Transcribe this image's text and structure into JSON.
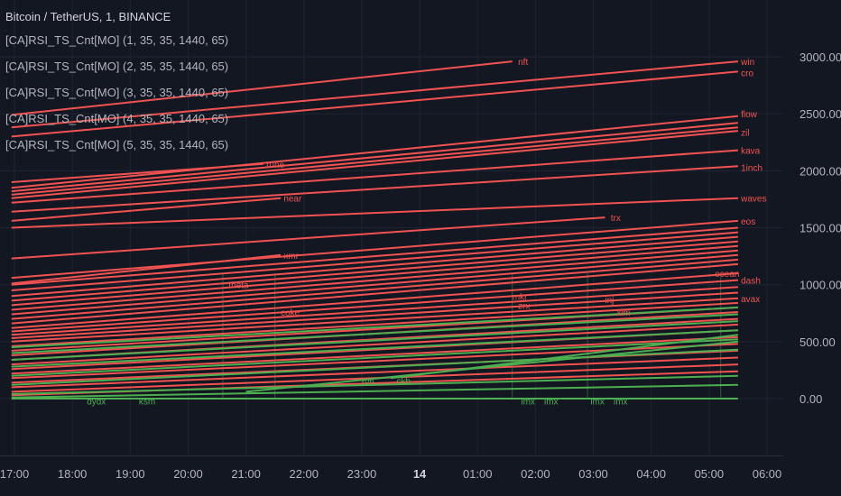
{
  "symbol_title": "Bitcoin / TetherUS, 1, BINANCE",
  "indicators": [
    "[CA]RSI_TS_Cnt[MO] (1, 35, 35, 1440, 65)",
    "[CA]RSI_TS_Cnt[MO] (2, 35, 35, 1440, 65)",
    "[CA]RSI_TS_Cnt[MO] (3, 35, 35, 1440, 65)",
    "[CA]RSI_TS_Cnt[MO] (4, 35, 35, 1440, 65)",
    "[CA]RSI_TS_Cnt[MO] (5, 35, 35, 1440, 65)"
  ],
  "colors": {
    "red": "#f05350",
    "green": "#4caf50",
    "background": "#131722",
    "grid": "#1f2433"
  },
  "chart_data": {
    "type": "line",
    "title": "",
    "x_ticks": [
      "17:00",
      "18:00",
      "19:00",
      "20:00",
      "21:00",
      "22:00",
      "23:00",
      "14",
      "01:00",
      "02:00",
      "03:00",
      "04:00",
      "05:00",
      "06:00"
    ],
    "y_ticks": [
      "3000.00",
      "2500.00",
      "2000.00",
      "1500.00",
      "1000.00",
      "500.00",
      "0.00"
    ],
    "ylim": [
      -100,
      3300
    ],
    "x_range_hours": [
      16.95,
      30.2
    ],
    "legend": "top-left",
    "series": [
      {
        "name": "nft",
        "color": "red",
        "points": [
          [
            16.95,
            2490
          ],
          [
            25.6,
            2960
          ]
        ]
      },
      {
        "name": "win",
        "color": "red",
        "points": [
          [
            16.95,
            2380
          ],
          [
            29.5,
            2960
          ]
        ]
      },
      {
        "name": "cro",
        "color": "red",
        "points": [
          [
            16.95,
            2300
          ],
          [
            29.5,
            2870
          ]
        ]
      },
      {
        "name": "flow",
        "color": "red",
        "points": [
          [
            16.95,
            1850
          ],
          [
            29.5,
            2480
          ]
        ]
      },
      {
        "name": "",
        "color": "red",
        "points": [
          [
            16.95,
            1820
          ],
          [
            29.5,
            2420
          ]
        ]
      },
      {
        "name": "",
        "color": "red",
        "points": [
          [
            16.95,
            1790
          ],
          [
            29.5,
            2380
          ]
        ]
      },
      {
        "name": "zil",
        "color": "red",
        "points": [
          [
            16.95,
            1760
          ],
          [
            29.5,
            2350
          ]
        ]
      },
      {
        "name": "rune",
        "color": "red",
        "points": [
          [
            16.95,
            1900
          ],
          [
            21.3,
            2060
          ]
        ]
      },
      {
        "name": "kava",
        "color": "red",
        "points": [
          [
            16.95,
            1720
          ],
          [
            29.5,
            2180
          ]
        ]
      },
      {
        "name": "1inch",
        "color": "red",
        "points": [
          [
            16.95,
            1640
          ],
          [
            29.5,
            2040
          ]
        ]
      },
      {
        "name": "near",
        "color": "red",
        "points": [
          [
            16.95,
            1560
          ],
          [
            21.6,
            1760
          ]
        ]
      },
      {
        "name": "waves",
        "color": "red",
        "points": [
          [
            16.95,
            1500
          ],
          [
            29.5,
            1760
          ]
        ]
      },
      {
        "name": "trx",
        "color": "red",
        "points": [
          [
            16.95,
            1230
          ],
          [
            27.2,
            1590
          ]
        ]
      },
      {
        "name": "xmr",
        "color": "red",
        "points": [
          [
            16.95,
            1010
          ],
          [
            21.6,
            1260
          ]
        ]
      },
      {
        "name": "eos",
        "color": "red",
        "points": [
          [
            16.95,
            1060
          ],
          [
            29.5,
            1560
          ]
        ]
      },
      {
        "name": "",
        "color": "red",
        "points": [
          [
            16.95,
            1000
          ],
          [
            29.5,
            1500
          ]
        ]
      },
      {
        "name": "",
        "color": "red",
        "points": [
          [
            16.95,
            950
          ],
          [
            29.5,
            1460
          ]
        ]
      },
      {
        "name": "",
        "color": "red",
        "points": [
          [
            16.95,
            900
          ],
          [
            29.5,
            1420
          ]
        ]
      },
      {
        "name": "",
        "color": "red",
        "points": [
          [
            16.95,
            860
          ],
          [
            29.5,
            1380
          ]
        ]
      },
      {
        "name": "",
        "color": "red",
        "points": [
          [
            16.95,
            820
          ],
          [
            29.5,
            1340
          ]
        ]
      },
      {
        "name": "",
        "color": "red",
        "points": [
          [
            16.95,
            780
          ],
          [
            29.5,
            1300
          ]
        ]
      },
      {
        "name": "theta",
        "color": "red",
        "points": [
          [
            16.95,
            740
          ],
          [
            29.5,
            1260
          ]
        ]
      },
      {
        "name": "",
        "color": "red",
        "points": [
          [
            16.95,
            700
          ],
          [
            29.5,
            1220
          ]
        ]
      },
      {
        "name": "",
        "color": "red",
        "points": [
          [
            16.95,
            660
          ],
          [
            29.5,
            1180
          ]
        ]
      },
      {
        "name": "ocean",
        "color": "red",
        "points": [
          [
            16.95,
            620
          ],
          [
            29.5,
            1100
          ]
        ]
      },
      {
        "name": "dash",
        "color": "red",
        "points": [
          [
            16.95,
            590
          ],
          [
            29.5,
            1040
          ]
        ]
      },
      {
        "name": "",
        "color": "red",
        "points": [
          [
            16.95,
            560
          ],
          [
            29.5,
            980
          ]
        ]
      },
      {
        "name": "",
        "color": "red",
        "points": [
          [
            16.95,
            530
          ],
          [
            29.5,
            930
          ]
        ]
      },
      {
        "name": "avax",
        "color": "red",
        "points": [
          [
            16.95,
            500
          ],
          [
            29.5,
            880
          ]
        ]
      },
      {
        "name": "",
        "color": "red",
        "points": [
          [
            16.95,
            460
          ],
          [
            29.5,
            840
          ]
        ]
      },
      {
        "name": "",
        "color": "red",
        "points": [
          [
            16.95,
            420
          ],
          [
            29.5,
            800
          ]
        ]
      },
      {
        "name": "",
        "color": "red",
        "points": [
          [
            16.95,
            380
          ],
          [
            29.5,
            760
          ]
        ]
      },
      {
        "name": "",
        "color": "red",
        "points": [
          [
            16.95,
            340
          ],
          [
            29.5,
            700
          ]
        ]
      },
      {
        "name": "",
        "color": "red",
        "points": [
          [
            16.95,
            300
          ],
          [
            29.5,
            650
          ]
        ]
      },
      {
        "name": "",
        "color": "red",
        "points": [
          [
            16.95,
            260
          ],
          [
            29.5,
            600
          ]
        ]
      },
      {
        "name": "",
        "color": "red",
        "points": [
          [
            16.95,
            220
          ],
          [
            29.5,
            540
          ]
        ]
      },
      {
        "name": "",
        "color": "red",
        "points": [
          [
            16.95,
            180
          ],
          [
            29.5,
            480
          ]
        ]
      },
      {
        "name": "",
        "color": "red",
        "points": [
          [
            16.95,
            140
          ],
          [
            29.5,
            420
          ]
        ]
      },
      {
        "name": "",
        "color": "red",
        "points": [
          [
            16.95,
            100
          ],
          [
            29.5,
            360
          ]
        ]
      },
      {
        "name": "",
        "color": "red",
        "points": [
          [
            16.95,
            60
          ],
          [
            29.5,
            300
          ]
        ]
      },
      {
        "name": "",
        "color": "red",
        "points": [
          [
            16.95,
            30
          ],
          [
            29.5,
            240
          ]
        ]
      },
      {
        "name": "",
        "color": "green",
        "points": [
          [
            16.95,
            450
          ],
          [
            29.5,
            800
          ]
        ]
      },
      {
        "name": "",
        "color": "green",
        "points": [
          [
            16.95,
            400
          ],
          [
            29.5,
            740
          ]
        ]
      },
      {
        "name": "",
        "color": "green",
        "points": [
          [
            16.95,
            340
          ],
          [
            29.5,
            680
          ]
        ]
      },
      {
        "name": "",
        "color": "green",
        "points": [
          [
            16.95,
            280
          ],
          [
            29.5,
            600
          ]
        ]
      },
      {
        "name": "",
        "color": "green",
        "points": [
          [
            16.95,
            200
          ],
          [
            29.5,
            520
          ]
        ]
      },
      {
        "name": "",
        "color": "green",
        "points": [
          [
            16.95,
            120
          ],
          [
            29.5,
            430
          ]
        ]
      },
      {
        "name": "",
        "color": "green",
        "points": [
          [
            21.0,
            60
          ],
          [
            29.5,
            500
          ]
        ]
      },
      {
        "name": "",
        "color": "green",
        "points": [
          [
            23.5,
            180
          ],
          [
            29.5,
            560
          ]
        ]
      },
      {
        "name": "",
        "color": "green",
        "points": [
          [
            16.95,
            40
          ],
          [
            29.5,
            200
          ]
        ]
      },
      {
        "name": "",
        "color": "green",
        "points": [
          [
            16.95,
            10
          ],
          [
            29.5,
            120
          ]
        ]
      },
      {
        "name": "",
        "color": "green",
        "points": [
          [
            16.95,
            0
          ],
          [
            29.5,
            0
          ]
        ]
      }
    ],
    "annotations": [
      {
        "text": "nft",
        "x": 25.7,
        "y": 2960,
        "color": "red"
      },
      {
        "text": "win",
        "x": 29.55,
        "y": 2960,
        "color": "red"
      },
      {
        "text": "cro",
        "x": 29.55,
        "y": 2860,
        "color": "red"
      },
      {
        "text": "flow",
        "x": 29.55,
        "y": 2500,
        "color": "red"
      },
      {
        "text": "zil",
        "x": 29.55,
        "y": 2340,
        "color": "red"
      },
      {
        "text": "rune",
        "x": 21.35,
        "y": 2060,
        "color": "red"
      },
      {
        "text": "kava",
        "x": 29.55,
        "y": 2180,
        "color": "red"
      },
      {
        "text": "1inch",
        "x": 29.55,
        "y": 2030,
        "color": "red"
      },
      {
        "text": "near",
        "x": 21.65,
        "y": 1760,
        "color": "red"
      },
      {
        "text": "waves",
        "x": 29.55,
        "y": 1760,
        "color": "red"
      },
      {
        "text": "trx",
        "x": 27.3,
        "y": 1590,
        "color": "red"
      },
      {
        "text": "xmr",
        "x": 21.65,
        "y": 1260,
        "color": "red"
      },
      {
        "text": "eos",
        "x": 29.55,
        "y": 1560,
        "color": "red"
      },
      {
        "text": "theta",
        "x": 20.7,
        "y": 1000,
        "color": "red"
      },
      {
        "text": "ocean",
        "x": 29.1,
        "y": 1100,
        "color": "red"
      },
      {
        "text": "dash",
        "x": 29.55,
        "y": 1040,
        "color": "red"
      },
      {
        "text": "avax",
        "x": 29.55,
        "y": 880,
        "color": "red"
      },
      {
        "text": "inj",
        "x": 27.2,
        "y": 870,
        "color": "red"
      },
      {
        "text": "xlm",
        "x": 27.4,
        "y": 760,
        "color": "red"
      },
      {
        "text": "coke",
        "x": 21.6,
        "y": 760,
        "color": "red"
      },
      {
        "text": "mkr",
        "x": 25.6,
        "y": 900,
        "color": "red"
      },
      {
        "text": "rvn",
        "x": 23.0,
        "y": 150,
        "color": "green"
      },
      {
        "text": "ckb",
        "x": 23.6,
        "y": 160,
        "color": "green"
      },
      {
        "text": "dydx",
        "x": 18.25,
        "y": -20,
        "color": "green"
      },
      {
        "text": "ksm",
        "x": 19.15,
        "y": -20,
        "color": "green"
      },
      {
        "text": "imx",
        "x": 25.75,
        "y": -20,
        "color": "green"
      },
      {
        "text": "imx",
        "x": 26.15,
        "y": -20,
        "color": "green"
      },
      {
        "text": "imx",
        "x": 26.95,
        "y": -20,
        "color": "green"
      },
      {
        "text": "imx",
        "x": 27.35,
        "y": -20,
        "color": "green"
      },
      {
        "text": "zrx",
        "x": 25.7,
        "y": 820,
        "color": "red"
      }
    ]
  }
}
